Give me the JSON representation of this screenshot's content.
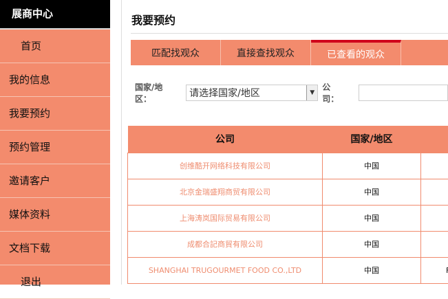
{
  "sidebar": {
    "header": "展商中心",
    "items": [
      {
        "label": "首页"
      },
      {
        "label": "我的信息"
      },
      {
        "label": "我要预约"
      },
      {
        "label": "预约管理"
      },
      {
        "label": "邀请客户"
      },
      {
        "label": "媒体资料"
      },
      {
        "label": "文档下载"
      },
      {
        "label": "退出"
      }
    ]
  },
  "main": {
    "title": "我要预约",
    "tabs": [
      {
        "label": "匹配找观众"
      },
      {
        "label": "直接查找观众"
      },
      {
        "label": "已查看的观众",
        "active": true
      }
    ],
    "filter": {
      "country_label": "国家/地区：",
      "country_value": "请选择国家/地区",
      "company_label": "公司：",
      "company_value": ""
    },
    "table": {
      "headers": [
        "公司",
        "国家/地区",
        ""
      ],
      "rows": [
        {
          "company": "创维酷开网络科技有限公司",
          "country": "中国",
          "extra": ""
        },
        {
          "company": "北京金瑞盛翔商贸有限公司",
          "country": "中国",
          "extra": ""
        },
        {
          "company": "上海涛岚国际贸易有限公司",
          "country": "中国",
          "extra": ""
        },
        {
          "company": "成都合記商貿有限公司",
          "country": "中国",
          "extra": ""
        },
        {
          "company": "SHANGHAI TRUGOURMET FOOD CO.,LTD",
          "country": "中国",
          "extra": "F"
        }
      ]
    }
  },
  "colors": {
    "accent": "#f38b6d",
    "active_tab_border": "#d0021b",
    "header_bg": "#000000"
  }
}
